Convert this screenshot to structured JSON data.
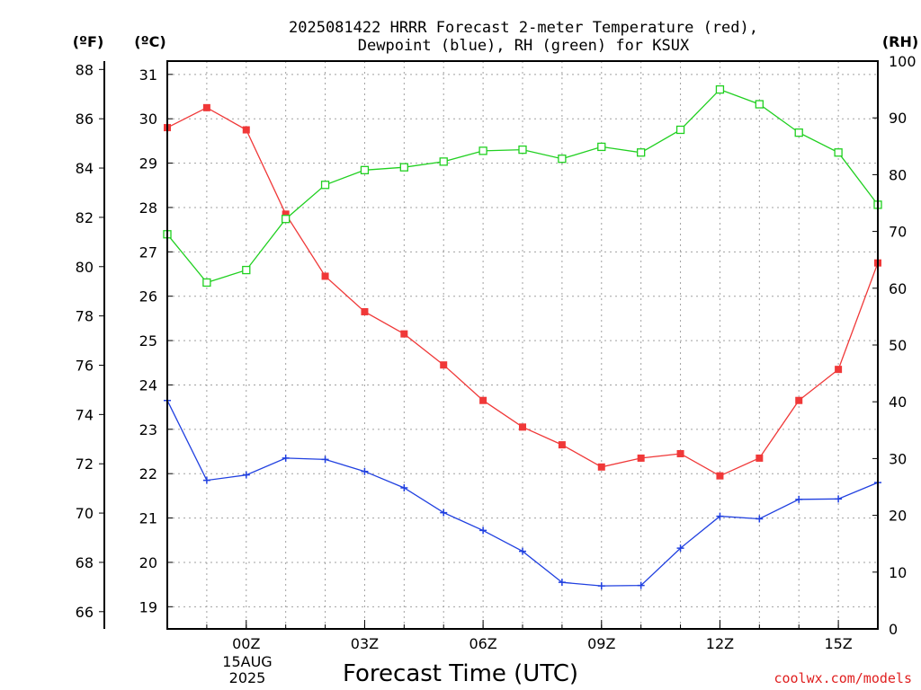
{
  "chart_data": {
    "type": "line",
    "title_line1": "2025081422 HRRR Forecast 2-meter Temperature (red),",
    "title_line2": "Dewpoint (blue), RH (green) for KSUX",
    "xlabel": "Forecast Time (UTC)",
    "credit": "coolwx.com/models",
    "unit_f": "(ºF)",
    "unit_c": "(ºC)",
    "unit_rh": "(RH)",
    "x_hours": [
      -2,
      -1,
      0,
      1,
      2,
      3,
      4,
      5,
      6,
      7,
      8,
      9,
      10,
      11,
      12,
      13,
      14,
      15,
      16
    ],
    "xlim": [
      -2,
      16
    ],
    "c_ylim": [
      18.5,
      31.3
    ],
    "rh_ylim": [
      0,
      100
    ],
    "x_ticks": [
      {
        "hour": 0,
        "label": "00Z"
      },
      {
        "hour": 3,
        "label": "03Z"
      },
      {
        "hour": 6,
        "label": "06Z"
      },
      {
        "hour": 9,
        "label": "09Z"
      },
      {
        "hour": 12,
        "label": "12Z"
      },
      {
        "hour": 15,
        "label": "15Z"
      }
    ],
    "date_label_1": "15AUG",
    "date_label_2": "2025",
    "c_ticks": [
      19,
      20,
      21,
      22,
      23,
      24,
      25,
      26,
      27,
      28,
      29,
      30,
      31
    ],
    "f_ticks": [
      66,
      68,
      70,
      72,
      74,
      76,
      78,
      80,
      82,
      84,
      86,
      88
    ],
    "rh_ticks": [
      0,
      10,
      20,
      30,
      40,
      50,
      60,
      70,
      80,
      90,
      100
    ],
    "series": [
      {
        "name": "Temperature",
        "axis": "c",
        "color": "#f03838",
        "marker": "filled-square",
        "values": [
          29.8,
          30.25,
          29.75,
          27.85,
          26.45,
          25.65,
          25.15,
          24.45,
          23.65,
          23.05,
          22.65,
          22.15,
          22.35,
          22.45,
          21.95,
          22.35,
          23.65,
          24.35,
          26.75
        ]
      },
      {
        "name": "Dewpoint",
        "axis": "c",
        "color": "#2040e0",
        "marker": "plus",
        "values": [
          23.65,
          21.85,
          21.97,
          22.35,
          22.32,
          22.05,
          21.68,
          21.12,
          20.72,
          20.25,
          19.55,
          19.47,
          19.48,
          20.32,
          21.04,
          20.98,
          21.42,
          21.43,
          21.8
        ]
      },
      {
        "name": "RH",
        "axis": "rh",
        "color": "#20d020",
        "marker": "open-square",
        "values": [
          69.5,
          61.0,
          63.2,
          72.2,
          78.2,
          80.8,
          81.3,
          82.3,
          84.2,
          84.4,
          82.8,
          84.9,
          83.9,
          87.9,
          95.0,
          92.4,
          87.4,
          83.9,
          74.7
        ]
      }
    ]
  }
}
